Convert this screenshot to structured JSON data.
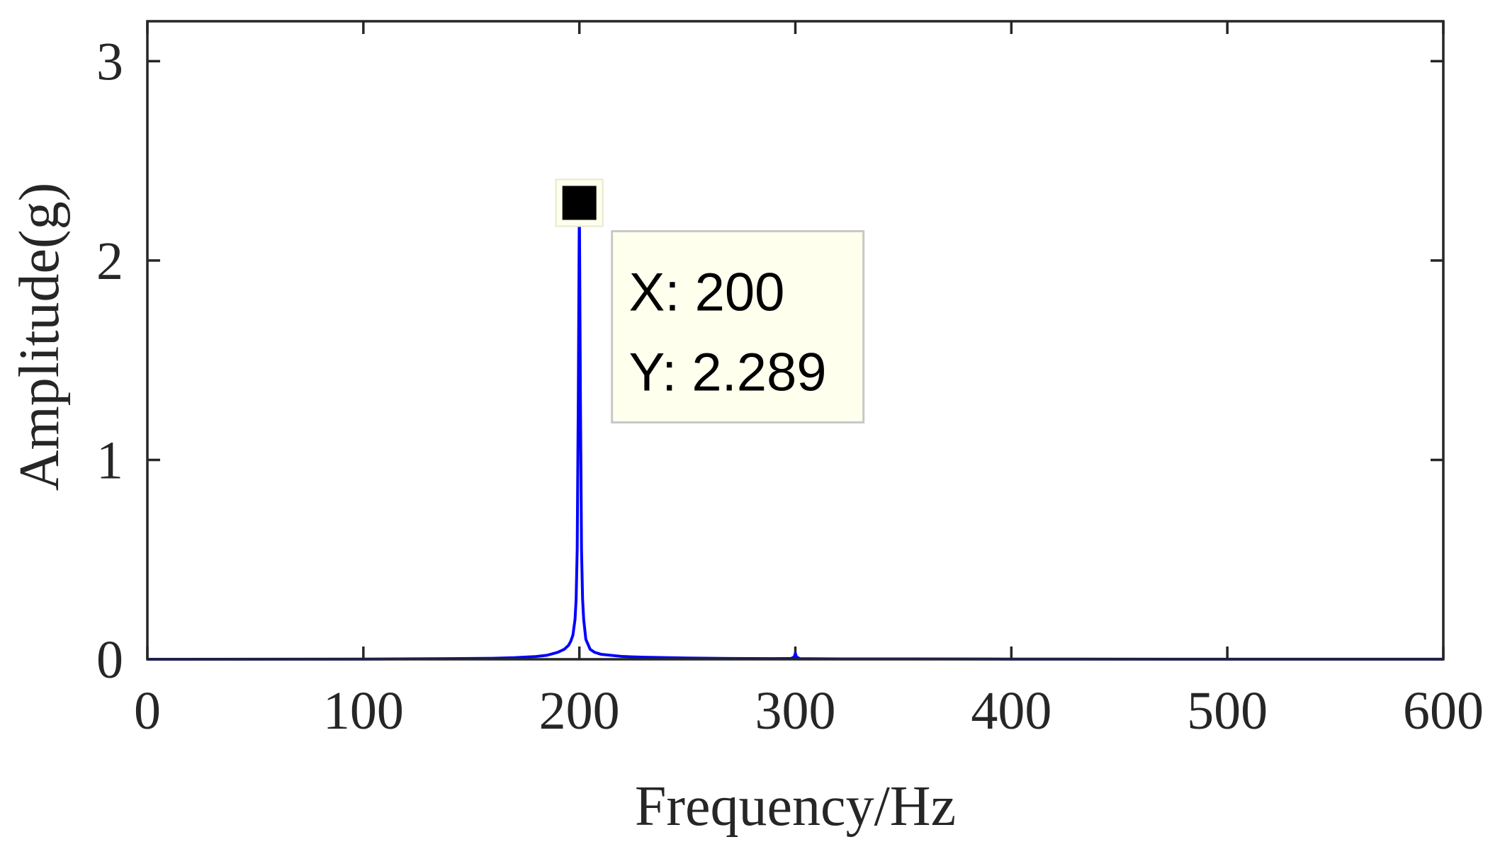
{
  "chart_data": {
    "type": "line",
    "title": "",
    "xlabel": "Frequency/Hz",
    "ylabel": "Amplitude(g)",
    "xlim": [
      0,
      600
    ],
    "ylim": [
      0,
      3.2
    ],
    "xticks": [
      0,
      100,
      200,
      300,
      400,
      500,
      600
    ],
    "yticks": [
      0,
      1,
      2,
      3
    ],
    "x_tick_labels": [
      "0",
      "100",
      "200",
      "300",
      "400",
      "500",
      "600"
    ],
    "y_tick_labels": [
      "0",
      "1",
      "2",
      "3"
    ],
    "grid": false,
    "colors": {
      "line": "#0000ff",
      "axes": "#262626",
      "datatip_bg": "#ffffee",
      "datatip_border": "#c8c8c8",
      "marker": "#000000"
    },
    "series": [
      {
        "x": [
          0,
          100,
          140,
          160,
          170,
          180,
          185,
          190,
          193,
          195,
          196,
          197,
          198,
          198.5,
          199,
          199.5,
          200,
          200.5,
          201,
          201.5,
          202,
          203,
          205,
          207,
          210,
          220,
          230,
          250,
          270,
          290,
          298,
          299.5,
          300,
          300.5,
          302,
          320,
          400,
          500,
          600
        ],
        "y": [
          0,
          0.001,
          0.003,
          0.005,
          0.008,
          0.014,
          0.02,
          0.035,
          0.05,
          0.07,
          0.09,
          0.12,
          0.2,
          0.3,
          0.55,
          1.3,
          2.289,
          1.3,
          0.55,
          0.3,
          0.2,
          0.1,
          0.05,
          0.035,
          0.025,
          0.014,
          0.01,
          0.006,
          0.004,
          0.003,
          0.004,
          0.012,
          0.03,
          0.012,
          0.003,
          0.002,
          0.001,
          0.0005,
          0.0003
        ]
      }
    ],
    "datatip": {
      "x": 200,
      "y": 2.289,
      "x_text": "X: 200",
      "y_text": "Y: 2.289"
    }
  }
}
